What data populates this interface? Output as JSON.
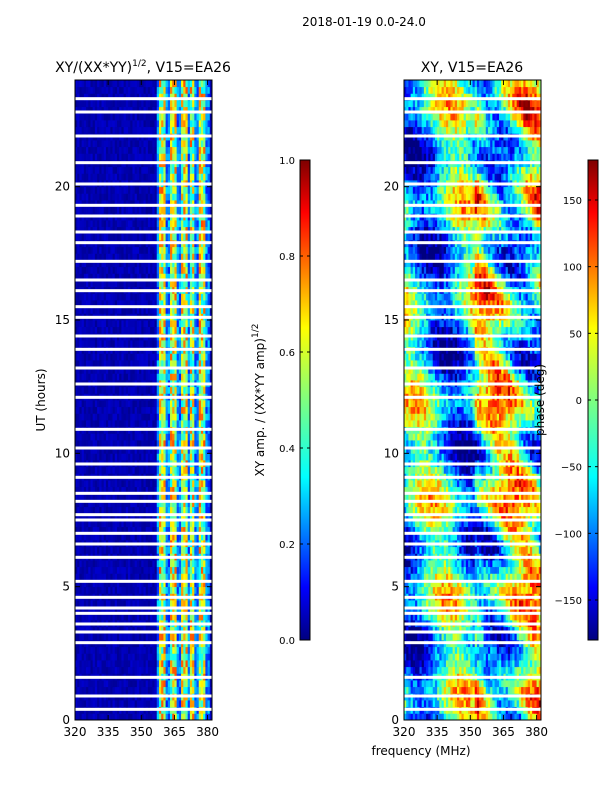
{
  "suptitle": "2018-01-19 0.0-24.0",
  "xlabel_shared": "frequency (MHz)",
  "colors": {
    "jet": [
      "#00007f",
      "#0000ff",
      "#007fff",
      "#00ffff",
      "#7fff7f",
      "#ffff00",
      "#ff7f00",
      "#ff0000",
      "#7f0000"
    ],
    "gap": "#ffffff",
    "axis": "#000000"
  },
  "chart_data": [
    {
      "type": "heatmap",
      "title": "XY/(XX*YY)",
      "title_superscript": "1/2",
      "title_suffix": ", V15=EA26",
      "xlabel": "",
      "ylabel": "UT (hours)",
      "xlim": [
        320,
        382
      ],
      "ylim": [
        0,
        24
      ],
      "xticks": [
        "320",
        "335",
        "350",
        "365",
        "380"
      ],
      "xtick_values": [
        320,
        335,
        350,
        365,
        380
      ],
      "yticks": [
        "0",
        "5",
        "10",
        "15",
        "20"
      ],
      "ytick_values": [
        0,
        5,
        10,
        15,
        20
      ],
      "colorbar": {
        "label": "XY amp. / (XX*YY amp)",
        "label_superscript": "1/2",
        "range": [
          0.0,
          1.0
        ],
        "ticks": [
          "0.0",
          "0.2",
          "0.4",
          "0.6",
          "0.8",
          "1.0"
        ],
        "tick_values": [
          0.0,
          0.2,
          0.4,
          0.6,
          0.8,
          1.0
        ]
      },
      "high_amplitude_bands_MHz": [
        [
          358,
          361
        ],
        [
          363,
          366
        ],
        [
          368,
          371
        ],
        [
          372,
          374
        ],
        [
          376,
          379
        ]
      ],
      "flagged_gaps_UT_hours": [
        0.4,
        0.9,
        1.6,
        2.9,
        3.3,
        3.6,
        4.0,
        4.2,
        4.6,
        5.2,
        6.1,
        6.6,
        7.0,
        7.5,
        7.7,
        8.2,
        8.5,
        9.1,
        9.6,
        10.2,
        10.9,
        12.1,
        12.6,
        13.2,
        13.9,
        14.4,
        15.1,
        15.5,
        16.1,
        16.5,
        17.2,
        17.9,
        18.3,
        18.9,
        19.3,
        20.1,
        20.9,
        21.9,
        22.8,
        23.3
      ]
    },
    {
      "type": "heatmap",
      "title": "XY, V15=EA26",
      "xlabel": "frequency (MHz)",
      "ylabel": "",
      "xlim": [
        320,
        382
      ],
      "ylim": [
        0,
        24
      ],
      "xticks": [
        "320",
        "335",
        "350",
        "365",
        "380"
      ],
      "xtick_values": [
        320,
        335,
        350,
        365,
        380
      ],
      "yticks": [
        "0",
        "5",
        "10",
        "15",
        "20"
      ],
      "ytick_values": [
        0,
        5,
        10,
        15,
        20
      ],
      "colorbar": {
        "label": "phase (deg)",
        "range": [
          -180,
          180
        ],
        "ticks": [
          "−150",
          "−100",
          "−50",
          "0",
          "50",
          "100",
          "150"
        ],
        "tick_values": [
          -150,
          -100,
          -50,
          0,
          50,
          100,
          150
        ]
      },
      "flagged_gaps_UT_hours": [
        0.4,
        0.9,
        1.6,
        2.9,
        3.3,
        3.6,
        4.0,
        4.2,
        4.6,
        5.2,
        6.1,
        6.6,
        7.0,
        7.5,
        7.7,
        8.2,
        8.5,
        9.1,
        9.6,
        10.2,
        10.9,
        12.1,
        12.6,
        13.2,
        13.9,
        14.4,
        15.1,
        15.5,
        16.1,
        16.5,
        17.2,
        17.9,
        18.3,
        18.9,
        19.3,
        20.1,
        20.9,
        21.9,
        22.8,
        23.3
      ]
    }
  ]
}
